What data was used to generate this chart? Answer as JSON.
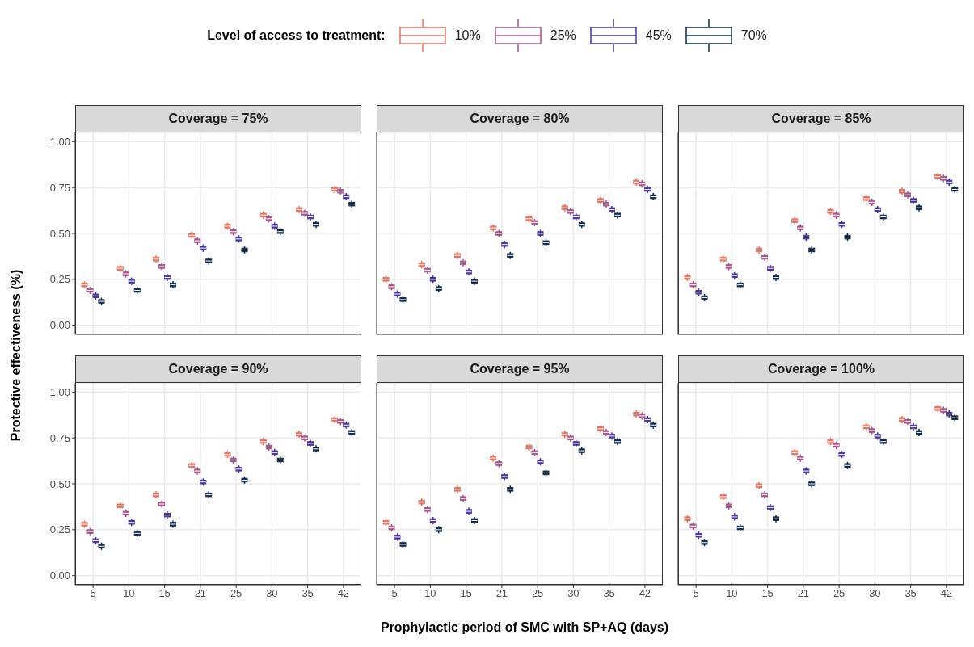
{
  "chart_data": [
    {
      "type": "box",
      "title": "Coverage = 75%",
      "legend": "top",
      "legend_title": "Level of access to treatment:",
      "ylabel": "Protective effectiveness (%)",
      "tick_labels": "y",
      "grid": true,
      "categories": [
        "5",
        "10",
        "15",
        "21",
        "25",
        "30",
        "35",
        "42"
      ],
      "ylim": [
        -0.05,
        1.05
      ],
      "yticks": [
        {
          "value": 0,
          "label": "0.00"
        },
        {
          "value": 0.25,
          "label": "0.25"
        },
        {
          "value": 0.5,
          "label": "0.50"
        },
        {
          "value": 0.75,
          "label": "0.75"
        },
        {
          "value": 1,
          "label": "1.00"
        }
      ],
      "series": [
        {
          "name": "10%",
          "color": "#e8735f",
          "boxes": [
            {
              "low": 0.2,
              "q1": 0.21,
              "median": 0.22,
              "q3": 0.23,
              "high": 0.24
            },
            {
              "low": 0.29,
              "q1": 0.3,
              "median": 0.31,
              "q3": 0.32,
              "high": 0.33
            },
            {
              "low": 0.34,
              "q1": 0.35,
              "median": 0.36,
              "q3": 0.37,
              "high": 0.38
            },
            {
              "low": 0.47,
              "q1": 0.48,
              "median": 0.49,
              "q3": 0.5,
              "high": 0.51
            },
            {
              "low": 0.52,
              "q1": 0.53,
              "median": 0.54,
              "q3": 0.55,
              "high": 0.56
            },
            {
              "low": 0.58,
              "q1": 0.59,
              "median": 0.6,
              "q3": 0.61,
              "high": 0.62
            },
            {
              "low": 0.61,
              "q1": 0.62,
              "median": 0.63,
              "q3": 0.64,
              "high": 0.65
            },
            {
              "low": 0.72,
              "q1": 0.73,
              "median": 0.74,
              "q3": 0.75,
              "high": 0.76
            }
          ]
        },
        {
          "name": "25%",
          "color": "#a8578a",
          "boxes": [
            {
              "low": 0.17,
              "q1": 0.18,
              "median": 0.19,
              "q3": 0.2,
              "high": 0.21
            },
            {
              "low": 0.26,
              "q1": 0.27,
              "median": 0.28,
              "q3": 0.29,
              "high": 0.3
            },
            {
              "low": 0.3,
              "q1": 0.31,
              "median": 0.32,
              "q3": 0.33,
              "high": 0.34
            },
            {
              "low": 0.44,
              "q1": 0.45,
              "median": 0.46,
              "q3": 0.47,
              "high": 0.48
            },
            {
              "low": 0.49,
              "q1": 0.5,
              "median": 0.51,
              "q3": 0.52,
              "high": 0.53
            },
            {
              "low": 0.56,
              "q1": 0.57,
              "median": 0.58,
              "q3": 0.59,
              "high": 0.6
            },
            {
              "low": 0.59,
              "q1": 0.6,
              "median": 0.61,
              "q3": 0.62,
              "high": 0.63
            },
            {
              "low": 0.71,
              "q1": 0.72,
              "median": 0.73,
              "q3": 0.74,
              "high": 0.75
            }
          ]
        },
        {
          "name": "45%",
          "color": "#4a35a0",
          "boxes": [
            {
              "low": 0.14,
              "q1": 0.15,
              "median": 0.16,
              "q3": 0.17,
              "high": 0.18
            },
            {
              "low": 0.22,
              "q1": 0.23,
              "median": 0.24,
              "q3": 0.25,
              "high": 0.26
            },
            {
              "low": 0.24,
              "q1": 0.25,
              "median": 0.26,
              "q3": 0.27,
              "high": 0.28
            },
            {
              "low": 0.4,
              "q1": 0.41,
              "median": 0.42,
              "q3": 0.43,
              "high": 0.44
            },
            {
              "low": 0.45,
              "q1": 0.46,
              "median": 0.47,
              "q3": 0.48,
              "high": 0.49
            },
            {
              "low": 0.52,
              "q1": 0.53,
              "median": 0.54,
              "q3": 0.55,
              "high": 0.56
            },
            {
              "low": 0.57,
              "q1": 0.58,
              "median": 0.59,
              "q3": 0.6,
              "high": 0.61
            },
            {
              "low": 0.68,
              "q1": 0.69,
              "median": 0.7,
              "q3": 0.71,
              "high": 0.72
            }
          ]
        },
        {
          "name": "70%",
          "color": "#0f2a4a",
          "boxes": [
            {
              "low": 0.11,
              "q1": 0.12,
              "median": 0.13,
              "q3": 0.14,
              "high": 0.15
            },
            {
              "low": 0.17,
              "q1": 0.18,
              "median": 0.19,
              "q3": 0.2,
              "high": 0.21
            },
            {
              "low": 0.2,
              "q1": 0.21,
              "median": 0.22,
              "q3": 0.23,
              "high": 0.24
            },
            {
              "low": 0.33,
              "q1": 0.34,
              "median": 0.35,
              "q3": 0.36,
              "high": 0.37
            },
            {
              "low": 0.39,
              "q1": 0.4,
              "median": 0.41,
              "q3": 0.42,
              "high": 0.43
            },
            {
              "low": 0.49,
              "q1": 0.5,
              "median": 0.51,
              "q3": 0.52,
              "high": 0.53
            },
            {
              "low": 0.53,
              "q1": 0.54,
              "median": 0.55,
              "q3": 0.56,
              "high": 0.57
            },
            {
              "low": 0.64,
              "q1": 0.65,
              "median": 0.66,
              "q3": 0.67,
              "high": 0.68
            }
          ]
        }
      ]
    },
    {
      "type": "box",
      "title": "Coverage = 80%",
      "tick_labels": false,
      "grid": true,
      "categories": [
        "5",
        "10",
        "15",
        "21",
        "25",
        "30",
        "35",
        "42"
      ],
      "ylim": [
        -0.05,
        1.05
      ],
      "yticks": [
        {
          "value": 0,
          "label": null
        },
        {
          "value": 0.25,
          "label": null
        },
        {
          "value": 0.5,
          "label": null
        },
        {
          "value": 0.75,
          "label": null
        },
        {
          "value": 1,
          "label": null
        }
      ],
      "series": [
        {
          "color": "#e8735f",
          "boxes": [
            {
              "low": 0.23,
              "q1": 0.24,
              "median": 0.25,
              "q3": 0.26,
              "high": 0.27
            },
            {
              "low": 0.31,
              "q1": 0.32,
              "median": 0.33,
              "q3": 0.34,
              "high": 0.35
            },
            {
              "low": 0.36,
              "q1": 0.37,
              "median": 0.38,
              "q3": 0.39,
              "high": 0.4
            },
            {
              "low": 0.51,
              "q1": 0.52,
              "median": 0.53,
              "q3": 0.54,
              "high": 0.55
            },
            {
              "low": 0.56,
              "q1": 0.57,
              "median": 0.58,
              "q3": 0.59,
              "high": 0.6
            },
            {
              "low": 0.62,
              "q1": 0.63,
              "median": 0.64,
              "q3": 0.65,
              "high": 0.66
            },
            {
              "low": 0.66,
              "q1": 0.67,
              "median": 0.68,
              "q3": 0.69,
              "high": 0.7
            },
            {
              "low": 0.76,
              "q1": 0.77,
              "median": 0.78,
              "q3": 0.79,
              "high": 0.8
            }
          ]
        },
        {
          "color": "#a8578a",
          "boxes": [
            {
              "low": 0.19,
              "q1": 0.2,
              "median": 0.21,
              "q3": 0.22,
              "high": 0.23
            },
            {
              "low": 0.28,
              "q1": 0.29,
              "median": 0.3,
              "q3": 0.31,
              "high": 0.32
            },
            {
              "low": 0.32,
              "q1": 0.33,
              "median": 0.34,
              "q3": 0.35,
              "high": 0.36
            },
            {
              "low": 0.48,
              "q1": 0.49,
              "median": 0.5,
              "q3": 0.51,
              "high": 0.52
            },
            {
              "low": 0.54,
              "q1": 0.55,
              "median": 0.56,
              "q3": 0.57,
              "high": 0.58
            },
            {
              "low": 0.6,
              "q1": 0.61,
              "median": 0.62,
              "q3": 0.63,
              "high": 0.64
            },
            {
              "low": 0.64,
              "q1": 0.65,
              "median": 0.66,
              "q3": 0.67,
              "high": 0.68
            },
            {
              "low": 0.75,
              "q1": 0.76,
              "median": 0.77,
              "q3": 0.78,
              "high": 0.79
            }
          ]
        },
        {
          "color": "#4a35a0",
          "boxes": [
            {
              "low": 0.15,
              "q1": 0.16,
              "median": 0.17,
              "q3": 0.18,
              "high": 0.19
            },
            {
              "low": 0.23,
              "q1": 0.24,
              "median": 0.25,
              "q3": 0.26,
              "high": 0.27
            },
            {
              "low": 0.27,
              "q1": 0.28,
              "median": 0.29,
              "q3": 0.3,
              "high": 0.31
            },
            {
              "low": 0.42,
              "q1": 0.43,
              "median": 0.44,
              "q3": 0.45,
              "high": 0.46
            },
            {
              "low": 0.48,
              "q1": 0.49,
              "median": 0.5,
              "q3": 0.51,
              "high": 0.52
            },
            {
              "low": 0.57,
              "q1": 0.58,
              "median": 0.59,
              "q3": 0.6,
              "high": 0.61
            },
            {
              "low": 0.61,
              "q1": 0.62,
              "median": 0.63,
              "q3": 0.64,
              "high": 0.65
            },
            {
              "low": 0.72,
              "q1": 0.73,
              "median": 0.74,
              "q3": 0.75,
              "high": 0.76
            }
          ]
        },
        {
          "color": "#0f2a4a",
          "boxes": [
            {
              "low": 0.12,
              "q1": 0.13,
              "median": 0.14,
              "q3": 0.15,
              "high": 0.16
            },
            {
              "low": 0.18,
              "q1": 0.19,
              "median": 0.2,
              "q3": 0.21,
              "high": 0.22
            },
            {
              "low": 0.22,
              "q1": 0.23,
              "median": 0.24,
              "q3": 0.25,
              "high": 0.26
            },
            {
              "low": 0.36,
              "q1": 0.37,
              "median": 0.38,
              "q3": 0.39,
              "high": 0.4
            },
            {
              "low": 0.43,
              "q1": 0.44,
              "median": 0.45,
              "q3": 0.46,
              "high": 0.47
            },
            {
              "low": 0.53,
              "q1": 0.54,
              "median": 0.55,
              "q3": 0.56,
              "high": 0.57
            },
            {
              "low": 0.58,
              "q1": 0.59,
              "median": 0.6,
              "q3": 0.61,
              "high": 0.62
            },
            {
              "low": 0.68,
              "q1": 0.69,
              "median": 0.7,
              "q3": 0.71,
              "high": 0.72
            }
          ]
        }
      ]
    },
    {
      "type": "box",
      "title": "Coverage = 85%",
      "tick_labels": false,
      "grid": true,
      "categories": [
        "5",
        "10",
        "15",
        "21",
        "25",
        "30",
        "35",
        "42"
      ],
      "ylim": [
        -0.05,
        1.05
      ],
      "yticks": [
        {
          "value": 0,
          "label": null
        },
        {
          "value": 0.25,
          "label": null
        },
        {
          "value": 0.5,
          "label": null
        },
        {
          "value": 0.75,
          "label": null
        },
        {
          "value": 1,
          "label": null
        }
      ],
      "series": [
        {
          "color": "#e8735f",
          "boxes": [
            {
              "low": 0.24,
              "q1": 0.25,
              "median": 0.26,
              "q3": 0.27,
              "high": 0.28
            },
            {
              "low": 0.34,
              "q1": 0.35,
              "median": 0.36,
              "q3": 0.37,
              "high": 0.38
            },
            {
              "low": 0.39,
              "q1": 0.4,
              "median": 0.41,
              "q3": 0.42,
              "high": 0.43
            },
            {
              "low": 0.55,
              "q1": 0.56,
              "median": 0.57,
              "q3": 0.58,
              "high": 0.59
            },
            {
              "low": 0.6,
              "q1": 0.61,
              "median": 0.62,
              "q3": 0.63,
              "high": 0.64
            },
            {
              "low": 0.67,
              "q1": 0.68,
              "median": 0.69,
              "q3": 0.7,
              "high": 0.71
            },
            {
              "low": 0.71,
              "q1": 0.72,
              "median": 0.73,
              "q3": 0.74,
              "high": 0.75
            },
            {
              "low": 0.79,
              "q1": 0.8,
              "median": 0.81,
              "q3": 0.82,
              "high": 0.83
            }
          ]
        },
        {
          "color": "#a8578a",
          "boxes": [
            {
              "low": 0.2,
              "q1": 0.21,
              "median": 0.22,
              "q3": 0.23,
              "high": 0.24
            },
            {
              "low": 0.3,
              "q1": 0.31,
              "median": 0.32,
              "q3": 0.33,
              "high": 0.34
            },
            {
              "low": 0.35,
              "q1": 0.36,
              "median": 0.37,
              "q3": 0.38,
              "high": 0.39
            },
            {
              "low": 0.51,
              "q1": 0.52,
              "median": 0.53,
              "q3": 0.54,
              "high": 0.55
            },
            {
              "low": 0.58,
              "q1": 0.59,
              "median": 0.6,
              "q3": 0.61,
              "high": 0.62
            },
            {
              "low": 0.65,
              "q1": 0.66,
              "median": 0.67,
              "q3": 0.68,
              "high": 0.69
            },
            {
              "low": 0.69,
              "q1": 0.7,
              "median": 0.71,
              "q3": 0.72,
              "high": 0.73
            },
            {
              "low": 0.78,
              "q1": 0.79,
              "median": 0.8,
              "q3": 0.81,
              "high": 0.82
            }
          ]
        },
        {
          "color": "#4a35a0",
          "boxes": [
            {
              "low": 0.16,
              "q1": 0.17,
              "median": 0.18,
              "q3": 0.19,
              "high": 0.2
            },
            {
              "low": 0.25,
              "q1": 0.26,
              "median": 0.27,
              "q3": 0.28,
              "high": 0.29
            },
            {
              "low": 0.29,
              "q1": 0.3,
              "median": 0.31,
              "q3": 0.32,
              "high": 0.33
            },
            {
              "low": 0.46,
              "q1": 0.47,
              "median": 0.48,
              "q3": 0.49,
              "high": 0.5
            },
            {
              "low": 0.53,
              "q1": 0.54,
              "median": 0.55,
              "q3": 0.56,
              "high": 0.57
            },
            {
              "low": 0.61,
              "q1": 0.62,
              "median": 0.63,
              "q3": 0.64,
              "high": 0.65
            },
            {
              "low": 0.66,
              "q1": 0.67,
              "median": 0.68,
              "q3": 0.69,
              "high": 0.7
            },
            {
              "low": 0.76,
              "q1": 0.77,
              "median": 0.78,
              "q3": 0.79,
              "high": 0.8
            }
          ]
        },
        {
          "color": "#0f2a4a",
          "boxes": [
            {
              "low": 0.13,
              "q1": 0.14,
              "median": 0.15,
              "q3": 0.16,
              "high": 0.17
            },
            {
              "low": 0.2,
              "q1": 0.21,
              "median": 0.22,
              "q3": 0.23,
              "high": 0.24
            },
            {
              "low": 0.24,
              "q1": 0.25,
              "median": 0.26,
              "q3": 0.27,
              "high": 0.28
            },
            {
              "low": 0.39,
              "q1": 0.4,
              "median": 0.41,
              "q3": 0.42,
              "high": 0.43
            },
            {
              "low": 0.46,
              "q1": 0.47,
              "median": 0.48,
              "q3": 0.49,
              "high": 0.5
            },
            {
              "low": 0.57,
              "q1": 0.58,
              "median": 0.59,
              "q3": 0.6,
              "high": 0.61
            },
            {
              "low": 0.62,
              "q1": 0.63,
              "median": 0.64,
              "q3": 0.65,
              "high": 0.66
            },
            {
              "low": 0.72,
              "q1": 0.73,
              "median": 0.74,
              "q3": 0.75,
              "high": 0.76
            }
          ]
        }
      ]
    },
    {
      "type": "box",
      "title": "Coverage = 90%",
      "grid": true,
      "categories": [
        "5",
        "10",
        "15",
        "21",
        "25",
        "30",
        "35",
        "42"
      ],
      "ylim": [
        -0.05,
        1.05
      ],
      "yticks": [
        {
          "value": 0,
          "label": "0.00"
        },
        {
          "value": 0.25,
          "label": "0.25"
        },
        {
          "value": 0.5,
          "label": "0.50"
        },
        {
          "value": 0.75,
          "label": "0.75"
        },
        {
          "value": 1,
          "label": "1.00"
        }
      ],
      "series": [
        {
          "color": "#e8735f",
          "boxes": [
            {
              "low": 0.26,
              "q1": 0.27,
              "median": 0.28,
              "q3": 0.29,
              "high": 0.3
            },
            {
              "low": 0.36,
              "q1": 0.37,
              "median": 0.38,
              "q3": 0.39,
              "high": 0.4
            },
            {
              "low": 0.42,
              "q1": 0.43,
              "median": 0.44,
              "q3": 0.45,
              "high": 0.46
            },
            {
              "low": 0.58,
              "q1": 0.59,
              "median": 0.6,
              "q3": 0.61,
              "high": 0.62
            },
            {
              "low": 0.64,
              "q1": 0.65,
              "median": 0.66,
              "q3": 0.67,
              "high": 0.68
            },
            {
              "low": 0.71,
              "q1": 0.72,
              "median": 0.73,
              "q3": 0.74,
              "high": 0.75
            },
            {
              "low": 0.75,
              "q1": 0.76,
              "median": 0.77,
              "q3": 0.78,
              "high": 0.79
            },
            {
              "low": 0.83,
              "q1": 0.84,
              "median": 0.85,
              "q3": 0.86,
              "high": 0.87
            }
          ]
        },
        {
          "color": "#a8578a",
          "boxes": [
            {
              "low": 0.22,
              "q1": 0.23,
              "median": 0.24,
              "q3": 0.25,
              "high": 0.26
            },
            {
              "low": 0.32,
              "q1": 0.33,
              "median": 0.34,
              "q3": 0.35,
              "high": 0.36
            },
            {
              "low": 0.37,
              "q1": 0.38,
              "median": 0.39,
              "q3": 0.4,
              "high": 0.41
            },
            {
              "low": 0.55,
              "q1": 0.56,
              "median": 0.57,
              "q3": 0.58,
              "high": 0.59
            },
            {
              "low": 0.61,
              "q1": 0.62,
              "median": 0.63,
              "q3": 0.64,
              "high": 0.65
            },
            {
              "low": 0.68,
              "q1": 0.69,
              "median": 0.7,
              "q3": 0.71,
              "high": 0.72
            },
            {
              "low": 0.73,
              "q1": 0.74,
              "median": 0.75,
              "q3": 0.76,
              "high": 0.77
            },
            {
              "low": 0.82,
              "q1": 0.83,
              "median": 0.84,
              "q3": 0.85,
              "high": 0.86
            }
          ]
        },
        {
          "color": "#4a35a0",
          "boxes": [
            {
              "low": 0.17,
              "q1": 0.18,
              "median": 0.19,
              "q3": 0.2,
              "high": 0.21
            },
            {
              "low": 0.27,
              "q1": 0.28,
              "median": 0.29,
              "q3": 0.3,
              "high": 0.31
            },
            {
              "low": 0.31,
              "q1": 0.32,
              "median": 0.33,
              "q3": 0.34,
              "high": 0.35
            },
            {
              "low": 0.49,
              "q1": 0.5,
              "median": 0.51,
              "q3": 0.52,
              "high": 0.53
            },
            {
              "low": 0.56,
              "q1": 0.57,
              "median": 0.58,
              "q3": 0.59,
              "high": 0.6
            },
            {
              "low": 0.65,
              "q1": 0.66,
              "median": 0.67,
              "q3": 0.68,
              "high": 0.69
            },
            {
              "low": 0.7,
              "q1": 0.71,
              "median": 0.72,
              "q3": 0.73,
              "high": 0.74
            },
            {
              "low": 0.8,
              "q1": 0.81,
              "median": 0.82,
              "q3": 0.83,
              "high": 0.84
            }
          ]
        },
        {
          "color": "#0f2a4a",
          "boxes": [
            {
              "low": 0.14,
              "q1": 0.15,
              "median": 0.16,
              "q3": 0.17,
              "high": 0.18
            },
            {
              "low": 0.21,
              "q1": 0.22,
              "median": 0.23,
              "q3": 0.24,
              "high": 0.25
            },
            {
              "low": 0.26,
              "q1": 0.27,
              "median": 0.28,
              "q3": 0.29,
              "high": 0.3
            },
            {
              "low": 0.42,
              "q1": 0.43,
              "median": 0.44,
              "q3": 0.45,
              "high": 0.46
            },
            {
              "low": 0.5,
              "q1": 0.51,
              "median": 0.52,
              "q3": 0.53,
              "high": 0.54
            },
            {
              "low": 0.61,
              "q1": 0.62,
              "median": 0.63,
              "q3": 0.64,
              "high": 0.65
            },
            {
              "low": 0.67,
              "q1": 0.68,
              "median": 0.69,
              "q3": 0.7,
              "high": 0.71
            },
            {
              "low": 0.76,
              "q1": 0.77,
              "median": 0.78,
              "q3": 0.79,
              "high": 0.8
            }
          ]
        }
      ]
    },
    {
      "type": "box",
      "title": "Coverage = 95%",
      "xlabel": "Prophylactic period of SMC with SP+AQ (days)",
      "tick_labels": "x",
      "grid": true,
      "categories": [
        "5",
        "10",
        "15",
        "21",
        "25",
        "30",
        "35",
        "42"
      ],
      "ylim": [
        -0.05,
        1.05
      ],
      "yticks": [
        {
          "value": 0,
          "label": null
        },
        {
          "value": 0.25,
          "label": null
        },
        {
          "value": 0.5,
          "label": null
        },
        {
          "value": 0.75,
          "label": null
        },
        {
          "value": 1,
          "label": null
        }
      ],
      "series": [
        {
          "color": "#e8735f",
          "boxes": [
            {
              "low": 0.27,
              "q1": 0.28,
              "median": 0.29,
              "q3": 0.3,
              "high": 0.31
            },
            {
              "low": 0.38,
              "q1": 0.39,
              "median": 0.4,
              "q3": 0.41,
              "high": 0.42
            },
            {
              "low": 0.45,
              "q1": 0.46,
              "median": 0.47,
              "q3": 0.48,
              "high": 0.49
            },
            {
              "low": 0.62,
              "q1": 0.63,
              "median": 0.64,
              "q3": 0.65,
              "high": 0.66
            },
            {
              "low": 0.68,
              "q1": 0.69,
              "median": 0.7,
              "q3": 0.71,
              "high": 0.72
            },
            {
              "low": 0.75,
              "q1": 0.76,
              "median": 0.77,
              "q3": 0.78,
              "high": 0.79
            },
            {
              "low": 0.78,
              "q1": 0.79,
              "median": 0.8,
              "q3": 0.81,
              "high": 0.82
            },
            {
              "low": 0.86,
              "q1": 0.87,
              "median": 0.88,
              "q3": 0.89,
              "high": 0.9
            }
          ]
        },
        {
          "color": "#a8578a",
          "boxes": [
            {
              "low": 0.24,
              "q1": 0.25,
              "median": 0.26,
              "q3": 0.27,
              "high": 0.28
            },
            {
              "low": 0.34,
              "q1": 0.35,
              "median": 0.36,
              "q3": 0.37,
              "high": 0.38
            },
            {
              "low": 0.4,
              "q1": 0.41,
              "median": 0.42,
              "q3": 0.43,
              "high": 0.44
            },
            {
              "low": 0.59,
              "q1": 0.6,
              "median": 0.61,
              "q3": 0.62,
              "high": 0.63
            },
            {
              "low": 0.65,
              "q1": 0.66,
              "median": 0.67,
              "q3": 0.68,
              "high": 0.69
            },
            {
              "low": 0.73,
              "q1": 0.74,
              "median": 0.75,
              "q3": 0.76,
              "high": 0.77
            },
            {
              "low": 0.76,
              "q1": 0.77,
              "median": 0.78,
              "q3": 0.79,
              "high": 0.8
            },
            {
              "low": 0.85,
              "q1": 0.86,
              "median": 0.87,
              "q3": 0.88,
              "high": 0.89
            }
          ]
        },
        {
          "color": "#4a35a0",
          "boxes": [
            {
              "low": 0.19,
              "q1": 0.2,
              "median": 0.21,
              "q3": 0.22,
              "high": 0.23
            },
            {
              "low": 0.28,
              "q1": 0.29,
              "median": 0.3,
              "q3": 0.31,
              "high": 0.32
            },
            {
              "low": 0.33,
              "q1": 0.34,
              "median": 0.35,
              "q3": 0.36,
              "high": 0.37
            },
            {
              "low": 0.52,
              "q1": 0.53,
              "median": 0.54,
              "q3": 0.55,
              "high": 0.56
            },
            {
              "low": 0.6,
              "q1": 0.61,
              "median": 0.62,
              "q3": 0.63,
              "high": 0.64
            },
            {
              "low": 0.7,
              "q1": 0.71,
              "median": 0.72,
              "q3": 0.73,
              "high": 0.74
            },
            {
              "low": 0.74,
              "q1": 0.75,
              "median": 0.76,
              "q3": 0.77,
              "high": 0.78
            },
            {
              "low": 0.83,
              "q1": 0.84,
              "median": 0.85,
              "q3": 0.86,
              "high": 0.87
            }
          ]
        },
        {
          "color": "#0f2a4a",
          "boxes": [
            {
              "low": 0.15,
              "q1": 0.16,
              "median": 0.17,
              "q3": 0.18,
              "high": 0.19
            },
            {
              "low": 0.23,
              "q1": 0.24,
              "median": 0.25,
              "q3": 0.26,
              "high": 0.27
            },
            {
              "low": 0.28,
              "q1": 0.29,
              "median": 0.3,
              "q3": 0.31,
              "high": 0.32
            },
            {
              "low": 0.45,
              "q1": 0.46,
              "median": 0.47,
              "q3": 0.48,
              "high": 0.49
            },
            {
              "low": 0.54,
              "q1": 0.55,
              "median": 0.56,
              "q3": 0.57,
              "high": 0.58
            },
            {
              "low": 0.66,
              "q1": 0.67,
              "median": 0.68,
              "q3": 0.69,
              "high": 0.7
            },
            {
              "low": 0.71,
              "q1": 0.72,
              "median": 0.73,
              "q3": 0.74,
              "high": 0.75
            },
            {
              "low": 0.8,
              "q1": 0.81,
              "median": 0.82,
              "q3": 0.83,
              "high": 0.84
            }
          ]
        }
      ]
    },
    {
      "type": "box",
      "title": "Coverage = 100%",
      "tick_labels": "x",
      "grid": true,
      "categories": [
        "5",
        "10",
        "15",
        "21",
        "25",
        "30",
        "35",
        "42"
      ],
      "ylim": [
        -0.05,
        1.05
      ],
      "yticks": [
        {
          "value": 0,
          "label": null
        },
        {
          "value": 0.25,
          "label": null
        },
        {
          "value": 0.5,
          "label": null
        },
        {
          "value": 0.75,
          "label": null
        },
        {
          "value": 1,
          "label": null
        }
      ],
      "series": [
        {
          "color": "#e8735f",
          "boxes": [
            {
              "low": 0.29,
              "q1": 0.3,
              "median": 0.31,
              "q3": 0.32,
              "high": 0.33
            },
            {
              "low": 0.41,
              "q1": 0.42,
              "median": 0.43,
              "q3": 0.44,
              "high": 0.45
            },
            {
              "low": 0.47,
              "q1": 0.48,
              "median": 0.49,
              "q3": 0.5,
              "high": 0.51
            },
            {
              "low": 0.65,
              "q1": 0.66,
              "median": 0.67,
              "q3": 0.68,
              "high": 0.69
            },
            {
              "low": 0.71,
              "q1": 0.72,
              "median": 0.73,
              "q3": 0.74,
              "high": 0.75
            },
            {
              "low": 0.79,
              "q1": 0.8,
              "median": 0.81,
              "q3": 0.82,
              "high": 0.83
            },
            {
              "low": 0.83,
              "q1": 0.84,
              "median": 0.85,
              "q3": 0.86,
              "high": 0.87
            },
            {
              "low": 0.89,
              "q1": 0.9,
              "median": 0.91,
              "q3": 0.92,
              "high": 0.93
            }
          ]
        },
        {
          "color": "#a8578a",
          "boxes": [
            {
              "low": 0.25,
              "q1": 0.26,
              "median": 0.27,
              "q3": 0.28,
              "high": 0.29
            },
            {
              "low": 0.36,
              "q1": 0.37,
              "median": 0.38,
              "q3": 0.39,
              "high": 0.4
            },
            {
              "low": 0.42,
              "q1": 0.43,
              "median": 0.44,
              "q3": 0.45,
              "high": 0.46
            },
            {
              "low": 0.62,
              "q1": 0.63,
              "median": 0.64,
              "q3": 0.65,
              "high": 0.66
            },
            {
              "low": 0.69,
              "q1": 0.7,
              "median": 0.71,
              "q3": 0.72,
              "high": 0.73
            },
            {
              "low": 0.77,
              "q1": 0.78,
              "median": 0.79,
              "q3": 0.8,
              "high": 0.81
            },
            {
              "low": 0.82,
              "q1": 0.83,
              "median": 0.84,
              "q3": 0.85,
              "high": 0.86
            },
            {
              "low": 0.88,
              "q1": 0.89,
              "median": 0.9,
              "q3": 0.91,
              "high": 0.92
            }
          ]
        },
        {
          "color": "#4a35a0",
          "boxes": [
            {
              "low": 0.2,
              "q1": 0.21,
              "median": 0.22,
              "q3": 0.23,
              "high": 0.24
            },
            {
              "low": 0.3,
              "q1": 0.31,
              "median": 0.32,
              "q3": 0.33,
              "high": 0.34
            },
            {
              "low": 0.35,
              "q1": 0.36,
              "median": 0.37,
              "q3": 0.38,
              "high": 0.39
            },
            {
              "low": 0.55,
              "q1": 0.56,
              "median": 0.57,
              "q3": 0.58,
              "high": 0.59
            },
            {
              "low": 0.64,
              "q1": 0.65,
              "median": 0.66,
              "q3": 0.67,
              "high": 0.68
            },
            {
              "low": 0.74,
              "q1": 0.75,
              "median": 0.76,
              "q3": 0.77,
              "high": 0.78
            },
            {
              "low": 0.79,
              "q1": 0.8,
              "median": 0.81,
              "q3": 0.82,
              "high": 0.83
            },
            {
              "low": 0.86,
              "q1": 0.87,
              "median": 0.88,
              "q3": 0.89,
              "high": 0.9
            }
          ]
        },
        {
          "color": "#0f2a4a",
          "boxes": [
            {
              "low": 0.16,
              "q1": 0.17,
              "median": 0.18,
              "q3": 0.19,
              "high": 0.2
            },
            {
              "low": 0.24,
              "q1": 0.25,
              "median": 0.26,
              "q3": 0.27,
              "high": 0.28
            },
            {
              "low": 0.29,
              "q1": 0.3,
              "median": 0.31,
              "q3": 0.32,
              "high": 0.33
            },
            {
              "low": 0.48,
              "q1": 0.49,
              "median": 0.5,
              "q3": 0.51,
              "high": 0.52
            },
            {
              "low": 0.58,
              "q1": 0.59,
              "median": 0.6,
              "q3": 0.61,
              "high": 0.62
            },
            {
              "low": 0.71,
              "q1": 0.72,
              "median": 0.73,
              "q3": 0.74,
              "high": 0.75
            },
            {
              "low": 0.76,
              "q1": 0.77,
              "median": 0.78,
              "q3": 0.79,
              "high": 0.8
            },
            {
              "low": 0.84,
              "q1": 0.85,
              "median": 0.86,
              "q3": 0.87,
              "high": 0.88
            }
          ]
        }
      ]
    }
  ]
}
